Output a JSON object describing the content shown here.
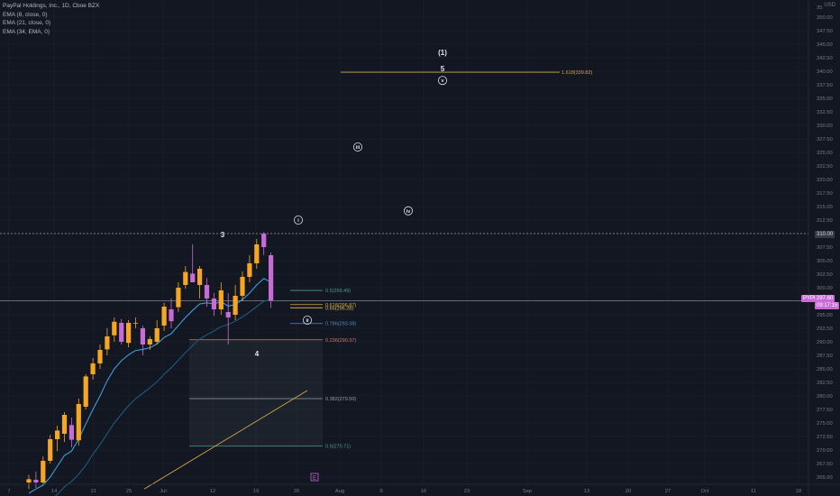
{
  "header": {
    "title": "PayPal Holdings, Inc., 1D, Cboe BZX",
    "indicators": [
      "EMA (8, close, 0)",
      "EMA (21, close, 0)",
      "EMA (34, EMA, 0)"
    ],
    "currency": "USD"
  },
  "current_price": {
    "symbol": "PYPL",
    "value": "297.60",
    "countdown": "09:17:15"
  },
  "crosshair_price": "310.00",
  "colors": {
    "background": "#131722",
    "grid": "#1e222d",
    "up_candle": "#f5a623",
    "down_candle": "#c96ad6",
    "ema_fast": "#3d9fd6",
    "ema_slow": "#1f5a7a",
    "fib_line": "#d4a84a",
    "text": "#b2b5be",
    "axis_text": "#787b86"
  },
  "chart_data": {
    "type": "candlestick",
    "y_axis": {
      "range": [
        262.5,
        352.5
      ],
      "ticks": [
        "265.00",
        "267.50",
        "270.00",
        "272.50",
        "275.00",
        "277.50",
        "280.00",
        "282.50",
        "285.00",
        "287.50",
        "290.00",
        "292.50",
        "295.00",
        "297.50",
        "300.00",
        "302.50",
        "305.00",
        "307.50",
        "310.00",
        "312.50",
        "315.00",
        "317.50",
        "320.00",
        "322.50",
        "325.00",
        "327.50",
        "330.00",
        "332.50",
        "335.00",
        "337.50",
        "340.00",
        "342.50",
        "345.00",
        "347.50",
        "350.00"
      ],
      "top_label": "35"
    },
    "x_axis": {
      "ticks": [
        "7",
        "14",
        "21",
        "25",
        "Jul",
        "12",
        "19",
        "26",
        "Aug",
        "9",
        "16",
        "23",
        "Sep",
        "13",
        "20",
        "27",
        "Oct",
        "11",
        "18"
      ]
    },
    "candles": [
      {
        "o": 264.0,
        "h": 265.4,
        "l": 262.8,
        "c": 264.6
      },
      {
        "o": 264.5,
        "h": 266.0,
        "l": 263.0,
        "c": 264.0
      },
      {
        "o": 264.0,
        "h": 268.8,
        "l": 263.5,
        "c": 268.0
      },
      {
        "o": 268.0,
        "h": 272.8,
        "l": 267.5,
        "c": 272.0
      },
      {
        "o": 272.0,
        "h": 274.5,
        "l": 269.8,
        "c": 273.6
      },
      {
        "o": 273.0,
        "h": 277.0,
        "l": 271.5,
        "c": 276.5
      },
      {
        "o": 274.6,
        "h": 276.0,
        "l": 270.5,
        "c": 271.9
      },
      {
        "o": 271.8,
        "h": 279.5,
        "l": 270.8,
        "c": 278.5
      },
      {
        "o": 278.0,
        "h": 284.0,
        "l": 277.5,
        "c": 283.6
      },
      {
        "o": 284.0,
        "h": 287.0,
        "l": 283.0,
        "c": 286.0
      },
      {
        "o": 286.0,
        "h": 289.5,
        "l": 285.0,
        "c": 288.5
      },
      {
        "o": 288.6,
        "h": 292.5,
        "l": 287.5,
        "c": 291.0
      },
      {
        "o": 291.2,
        "h": 294.5,
        "l": 290.0,
        "c": 293.7
      },
      {
        "o": 293.5,
        "h": 294.2,
        "l": 289.5,
        "c": 290.0
      },
      {
        "o": 289.8,
        "h": 294.0,
        "l": 289.0,
        "c": 293.5
      },
      {
        "o": 293.5,
        "h": 294.5,
        "l": 292.5,
        "c": 293.5
      },
      {
        "o": 292.5,
        "h": 293.0,
        "l": 287.5,
        "c": 289.5
      },
      {
        "o": 289.5,
        "h": 291.0,
        "l": 288.5,
        "c": 290.5
      },
      {
        "o": 290.0,
        "h": 294.0,
        "l": 289.5,
        "c": 292.5
      },
      {
        "o": 293.0,
        "h": 297.2,
        "l": 292.0,
        "c": 296.5
      },
      {
        "o": 296.0,
        "h": 298.0,
        "l": 292.5,
        "c": 293.8
      },
      {
        "o": 296.4,
        "h": 301.0,
        "l": 295.5,
        "c": 300.0
      },
      {
        "o": 300.5,
        "h": 304.0,
        "l": 299.8,
        "c": 302.9
      },
      {
        "o": 302.6,
        "h": 308.0,
        "l": 301.5,
        "c": 301.0
      },
      {
        "o": 300.5,
        "h": 304.0,
        "l": 298.0,
        "c": 303.5
      },
      {
        "o": 300.5,
        "h": 301.8,
        "l": 296.5,
        "c": 298.0
      },
      {
        "o": 298.0,
        "h": 299.0,
        "l": 294.8,
        "c": 296.0
      },
      {
        "o": 296.0,
        "h": 301.0,
        "l": 295.0,
        "c": 299.5
      },
      {
        "o": 295.5,
        "h": 299.0,
        "l": 289.5,
        "c": 294.5
      },
      {
        "o": 295.0,
        "h": 300.5,
        "l": 294.0,
        "c": 298.5
      },
      {
        "o": 298.5,
        "h": 303.0,
        "l": 297.5,
        "c": 302.0
      },
      {
        "o": 302.0,
        "h": 306.0,
        "l": 301.0,
        "c": 304.5
      },
      {
        "o": 304.5,
        "h": 309.0,
        "l": 303.5,
        "c": 308.0
      },
      {
        "o": 310.0,
        "h": 310.3,
        "l": 306.0,
        "c": 307.5
      },
      {
        "o": 306.0,
        "h": 306.5,
        "l": 296.3,
        "c": 297.6
      }
    ],
    "ema_fast": [
      262.0,
      262.8,
      263.5,
      265.0,
      267.0,
      269.0,
      269.8,
      272.0,
      274.8,
      277.5,
      280.0,
      282.8,
      285.0,
      286.5,
      287.6,
      288.4,
      288.6,
      288.9,
      289.6,
      290.8,
      291.5,
      293.0,
      294.5,
      295.8,
      297.0,
      297.2,
      297.0,
      297.4,
      296.6,
      296.9,
      297.8,
      299.0,
      300.5,
      301.7,
      301.0
    ],
    "ema_slow": [
      258.0,
      258.7,
      259.5,
      260.5,
      261.8,
      263.2,
      264.2,
      265.5,
      267.2,
      269.2,
      271.0,
      273.0,
      275.0,
      276.6,
      278.2,
      279.5,
      280.5,
      281.5,
      282.6,
      284.0,
      285.2,
      286.6,
      288.0,
      289.3,
      290.5,
      291.3,
      292.0,
      292.8,
      293.2,
      293.8,
      294.6,
      295.5,
      296.5,
      297.5,
      297.8
    ],
    "fib_levels": [
      {
        "label": "0.5(299.49)",
        "price": 299.49,
        "color": "#4a9e8f"
      },
      {
        "label": "0.618(296.87)",
        "price": 296.87,
        "color": "#d4a84a"
      },
      {
        "label": "0.65(296.28)",
        "price": 296.28,
        "color": "#e8b95a"
      },
      {
        "label": "0.786(293.38)",
        "price": 293.38,
        "color": "#4f8fc4"
      },
      {
        "label": "0.236(290.37)",
        "price": 290.37,
        "color": "#d07c6a"
      },
      {
        "label": "0.382(279.50)",
        "price": 279.5,
        "color": "#9aa0a6"
      },
      {
        "label": "0.5(270.71)",
        "price": 270.71,
        "color": "#4a9e8f"
      },
      {
        "label": "1.618(339.82)",
        "price": 339.82,
        "color": "#d4a84a"
      }
    ],
    "wave_labels": [
      {
        "text": "(1)",
        "price": 343.5,
        "style": "plain"
      },
      {
        "text": "5",
        "price": 340.5,
        "style": "plain"
      },
      {
        "text": "v",
        "price": 338.3,
        "style": "circle"
      },
      {
        "text": "iii",
        "price": 326.0,
        "style": "circle"
      },
      {
        "text": "iv",
        "price": 314.2,
        "style": "circle"
      },
      {
        "text": "i",
        "price": 312.5,
        "style": "circle"
      },
      {
        "text": "3",
        "price": 309.8,
        "style": "plain"
      },
      {
        "text": "ii",
        "price": 294.0,
        "style": "circle"
      },
      {
        "text": "4",
        "price": 287.8,
        "style": "plain"
      }
    ],
    "event_marker": "E"
  }
}
